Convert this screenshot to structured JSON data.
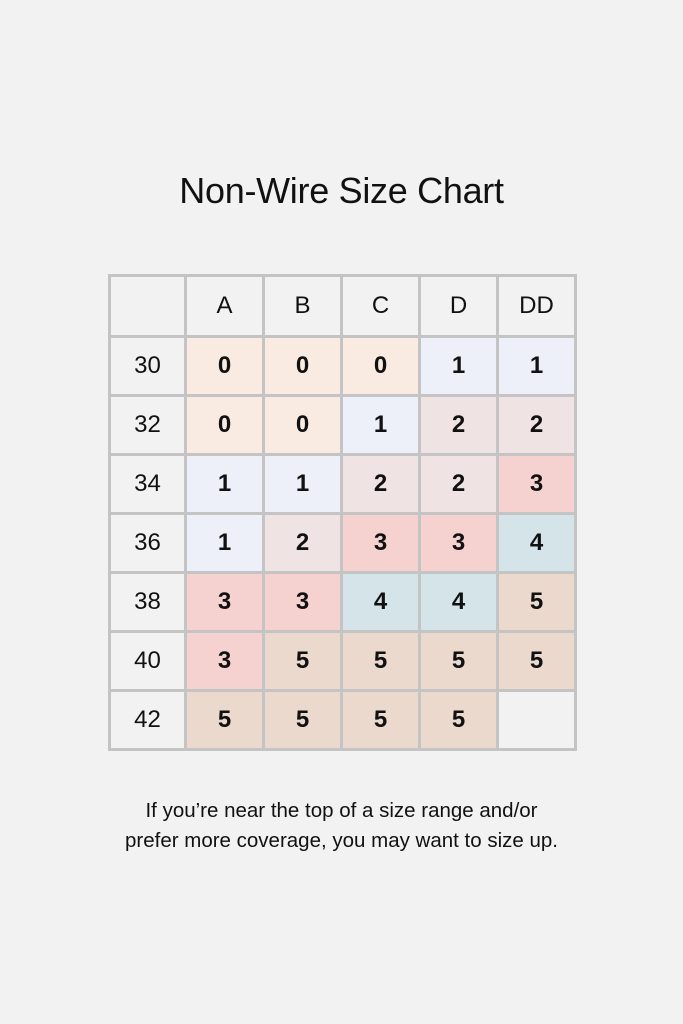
{
  "title": "Non-Wire Size Chart",
  "chart_data": {
    "type": "table",
    "title": "Non-Wire Size Chart",
    "columns": [
      "",
      "A",
      "B",
      "C",
      "D",
      "DD"
    ],
    "rows": [
      {
        "band": "30",
        "values": [
          "0",
          "0",
          "0",
          "1",
          "1"
        ]
      },
      {
        "band": "32",
        "values": [
          "0",
          "0",
          "1",
          "2",
          "2"
        ]
      },
      {
        "band": "34",
        "values": [
          "1",
          "1",
          "2",
          "2",
          "3"
        ]
      },
      {
        "band": "36",
        "values": [
          "1",
          "2",
          "3",
          "3",
          "4"
        ]
      },
      {
        "band": "38",
        "values": [
          "3",
          "3",
          "4",
          "4",
          "5"
        ]
      },
      {
        "band": "40",
        "values": [
          "3",
          "5",
          "5",
          "5",
          "5"
        ]
      },
      {
        "band": "42",
        "values": [
          "5",
          "5",
          "5",
          "5",
          ""
        ]
      }
    ],
    "value_colors": {
      "0": "#f9ebe2",
      "1": "#edf0f8",
      "2": "#efe3e3",
      "3": "#f5d2cf",
      "4": "#d5e4e8",
      "5": "#ead9cc",
      "": "#f2f2f2"
    }
  },
  "note": {
    "line1": "If you’re near the top of a size range and/or",
    "line2": "prefer more coverage, you may want to size up."
  }
}
